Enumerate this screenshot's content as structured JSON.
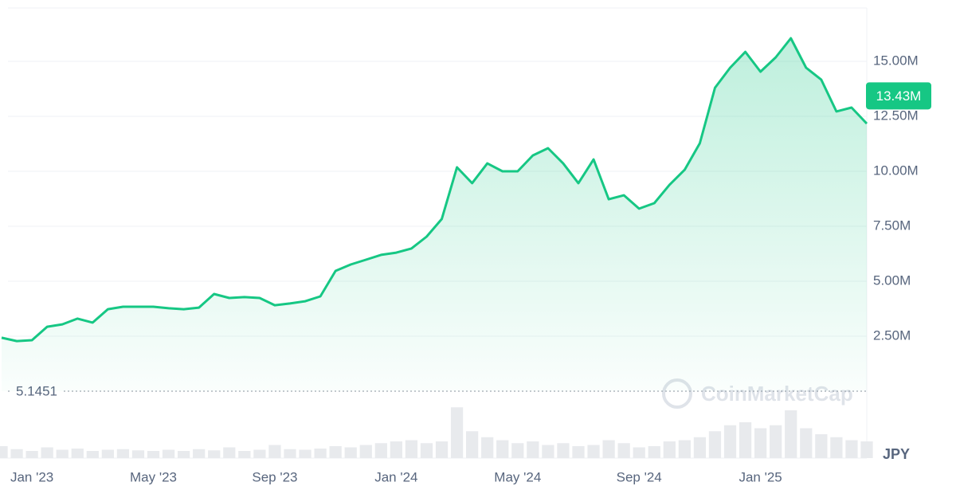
{
  "chart_data": {
    "type": "area",
    "categories": [
      null,
      null,
      "Jan '23",
      null,
      null,
      null,
      null,
      null,
      null,
      null,
      "May '23",
      null,
      null,
      null,
      null,
      null,
      null,
      null,
      "Sep '23",
      null,
      null,
      null,
      null,
      null,
      null,
      null,
      "Jan '24",
      null,
      null,
      null,
      null,
      null,
      null,
      null,
      "May '24",
      null,
      null,
      null,
      null,
      null,
      null,
      null,
      "Sep '24",
      null,
      null,
      null,
      null,
      null,
      null,
      null,
      "Jan '25",
      null,
      null,
      null,
      null,
      null,
      null,
      null
    ],
    "series": [
      {
        "color": "#16c784",
        "values": [
          2430000,
          2280000,
          2320000,
          2930000,
          3040000,
          3300000,
          3120000,
          3730000,
          3840000,
          3840000,
          3840000,
          3770000,
          3730000,
          3800000,
          4420000,
          4240000,
          4280000,
          4240000,
          3910000,
          3990000,
          4090000,
          4310000,
          5470000,
          5760000,
          5980000,
          6200000,
          6300000,
          6490000,
          7030000,
          7830000,
          10180000,
          9460000,
          10360000,
          10000000,
          10000000,
          10720000,
          11050000,
          10360000,
          9460000,
          10540000,
          8730000,
          8910000,
          8300000,
          8550000,
          9380000,
          10070000,
          11270000,
          13800000,
          14710000,
          15430000,
          14530000,
          15180000,
          16050000,
          14710000,
          14170000,
          12720000,
          12900000,
          12170000
        ]
      }
    ],
    "volume": {
      "color": "#e8eaed",
      "values": [
        20,
        15,
        12,
        18,
        14,
        16,
        12,
        14,
        15,
        13,
        12,
        14,
        12,
        15,
        13,
        18,
        12,
        14,
        22,
        15,
        14,
        16,
        20,
        18,
        22,
        25,
        28,
        30,
        25,
        28,
        85,
        45,
        35,
        30,
        25,
        28,
        22,
        25,
        20,
        22,
        30,
        25,
        18,
        20,
        28,
        30,
        35,
        45,
        55,
        60,
        50,
        55,
        80,
        50,
        40,
        35,
        30,
        28
      ]
    },
    "volume_lim": [
      0,
      100
    ],
    "ylim": [
      0,
      17400000
    ],
    "yticks": [
      {
        "value": 2500000,
        "label": "2.50M"
      },
      {
        "value": 5000000,
        "label": "5.00M"
      },
      {
        "value": 7500000,
        "label": "7.50M"
      },
      {
        "value": 10000000,
        "label": "10.00M"
      },
      {
        "value": 12500000,
        "label": "12.50M"
      },
      {
        "value": 15000000,
        "label": "15.00M"
      }
    ],
    "grid": true,
    "current_price": {
      "value": 13430000,
      "label": "13.43M"
    },
    "reference_line": 5.1451,
    "currency": "JPY",
    "watermark": "CoinMarketCap"
  }
}
